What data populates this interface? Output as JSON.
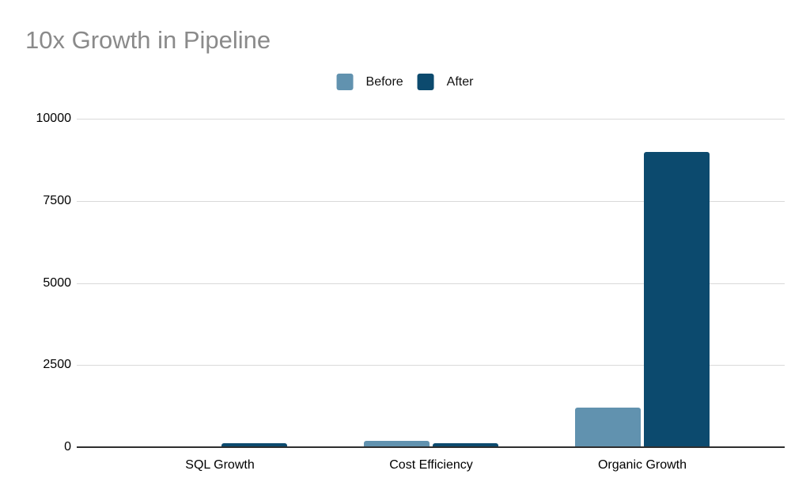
{
  "title": "10x Growth in Pipeline",
  "legend": {
    "position": "top",
    "items": [
      {
        "label": "Before",
        "color": "#6192af"
      },
      {
        "label": "After",
        "color": "#0c4a6e"
      }
    ]
  },
  "chart_data": {
    "type": "bar",
    "title": "10x Growth in Pipeline",
    "categories": [
      "SQL Growth",
      "Cost Efficiency",
      "Organic Growth"
    ],
    "series": [
      {
        "name": "Before",
        "color": "#6192af",
        "values": [
          0,
          200,
          1200
        ]
      },
      {
        "name": "After",
        "color": "#0c4a6e",
        "values": [
          130,
          120,
          9000
        ]
      }
    ],
    "xlabel": "",
    "ylabel": "",
    "ylim": [
      0,
      10000
    ],
    "y_ticks": [
      0,
      2500,
      5000,
      7500,
      10000
    ],
    "grid": true,
    "legend_position": "top"
  },
  "colors": {
    "background": "#ffffff",
    "title_text": "#8a8a8a",
    "axis_text": "#000000",
    "gridline": "#d9d9d9",
    "baseline": "#2e2e2e",
    "series_before": "#6192af",
    "series_after": "#0c4a6e"
  }
}
